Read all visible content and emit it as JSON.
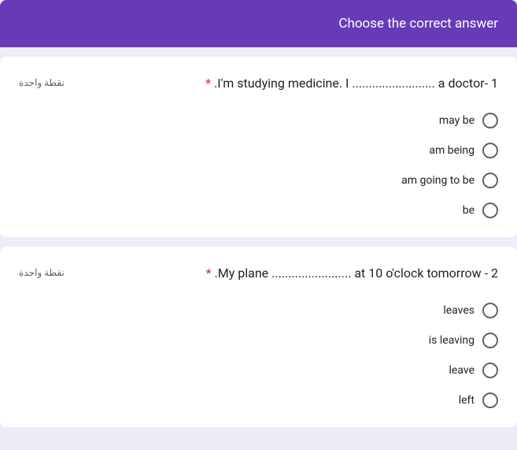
{
  "header": {
    "title": "Choose the correct answer"
  },
  "colors": {
    "accent": "#673ab7",
    "required": "#d93025",
    "text": "#202124",
    "muted": "#5f6368",
    "page_bg": "#f0ebf8",
    "card_bg": "#ffffff"
  },
  "questions": [
    {
      "points": "نقطة واحدة",
      "required_mark": "*",
      "text": ".I'm studying medicine. I ......................... a doctor- 1",
      "options": [
        "may be",
        "am being",
        "am going to be",
        "be"
      ]
    },
    {
      "points": "نقطة واحدة",
      "required_mark": "*",
      "text": ".My plane ........................ at 10 o'clock tomorrow - 2",
      "options": [
        "leaves",
        "is leaving",
        "leave",
        "left"
      ]
    }
  ]
}
